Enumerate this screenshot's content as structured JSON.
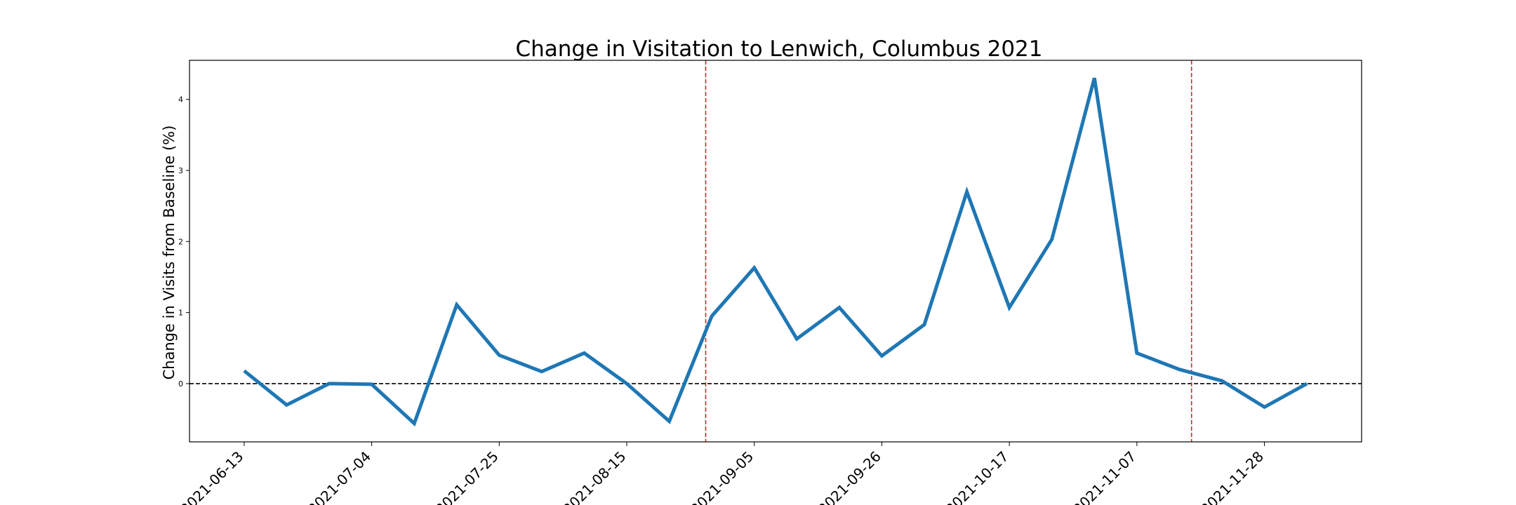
{
  "chart_data": {
    "type": "line",
    "title": "Change in Visitation to Lenwich, Columbus 2021",
    "xlabel": "",
    "ylabel": "Change in Visits from Baseline (%)",
    "x": [
      "2021-06-13",
      "2021-06-20",
      "2021-06-27",
      "2021-07-04",
      "2021-07-11",
      "2021-07-18",
      "2021-07-25",
      "2021-08-01",
      "2021-08-08",
      "2021-08-15",
      "2021-08-22",
      "2021-08-29",
      "2021-09-05",
      "2021-09-12",
      "2021-09-19",
      "2021-09-26",
      "2021-10-03",
      "2021-10-10",
      "2021-10-17",
      "2021-10-24",
      "2021-10-31",
      "2021-11-07",
      "2021-11-14",
      "2021-11-21",
      "2021-11-28",
      "2021-12-05"
    ],
    "series": [
      {
        "values": [
          0.18,
          -0.3,
          0.0,
          -0.01,
          -0.56,
          1.11,
          0.4,
          0.17,
          0.43,
          0.0,
          -0.53,
          0.95,
          1.63,
          0.63,
          1.07,
          0.39,
          0.83,
          2.7,
          1.07,
          2.03,
          4.3,
          0.43,
          0.2,
          0.04,
          -0.33,
          0.0
        ],
        "color": "#1f77b4"
      }
    ],
    "x_ticks": [
      "2021-06-13",
      "2021-07-04",
      "2021-07-25",
      "2021-08-15",
      "2021-09-05",
      "2021-09-26",
      "2021-10-17",
      "2021-11-07",
      "2021-11-28"
    ],
    "y_ticks": [
      0,
      1,
      2,
      3,
      4
    ],
    "ylim": [
      -0.82,
      4.55
    ],
    "xlim": [
      "2021-06-04",
      "2021-12-14"
    ],
    "reference_lines": [
      {
        "orientation": "horizontal",
        "y": 0,
        "style": "dashed",
        "color": "#000000"
      },
      {
        "orientation": "vertical",
        "x": "2021-08-28",
        "style": "dashed",
        "color": "#d62728"
      },
      {
        "orientation": "vertical",
        "x": "2021-11-16",
        "style": "dashed",
        "color": "#d62728"
      }
    ],
    "grid": false,
    "legend": "none"
  }
}
